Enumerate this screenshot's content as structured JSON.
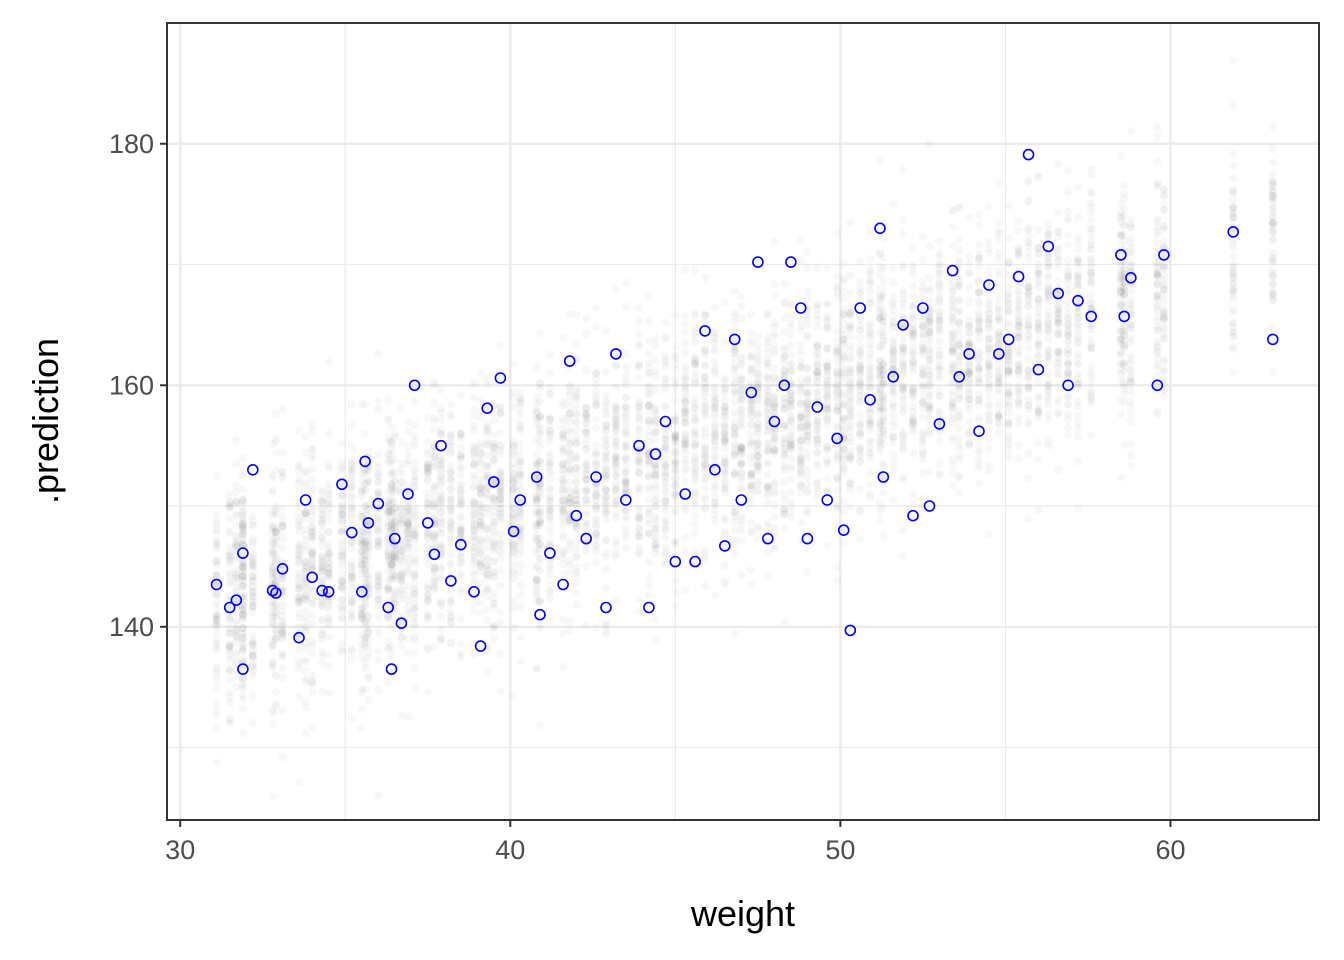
{
  "chart_data": {
    "type": "scatter",
    "xlabel": "weight",
    "ylabel": ".prediction",
    "xlim": [
      29.6,
      64.5
    ],
    "ylim": [
      124,
      190
    ],
    "x_ticks": [
      30,
      40,
      50,
      60
    ],
    "y_ticks": [
      140,
      160,
      180
    ],
    "x_tick_labels": [
      "30",
      "40",
      "50",
      "60"
    ],
    "y_tick_labels": [
      "140",
      "160",
      "180"
    ],
    "grid": true,
    "legend": "none",
    "colors": {
      "observed": "#0000ff",
      "draws": "#1a1a1a",
      "grid": "#ebebeb",
      "panel_border": "#333333"
    },
    "series": [
      {
        "name": "",
        "role": "posterior-prediction-draws",
        "description_values": "many translucent predicted heights per observed weight",
        "marker": "filled-circle",
        "color": "#1a1a1a",
        "opacity": 0.03,
        "mean_line": {
          "intercept": 114.0,
          "slope": 0.905
        },
        "sd": 5.1
      },
      {
        "name": "",
        "role": "observed",
        "marker": "open-circle",
        "color": "#0000ff",
        "x": [
          31.1,
          31.5,
          31.7,
          31.9,
          31.9,
          32.2,
          32.8,
          32.9,
          33.1,
          33.6,
          33.8,
          34.0,
          34.3,
          34.5,
          34.9,
          35.2,
          35.5,
          35.6,
          35.7,
          36.0,
          36.3,
          36.4,
          36.5,
          36.7,
          36.9,
          37.1,
          37.5,
          37.7,
          37.9,
          38.2,
          38.5,
          38.9,
          39.1,
          39.3,
          39.5,
          39.7,
          40.1,
          40.3,
          40.8,
          40.9,
          41.2,
          41.6,
          41.8,
          42.0,
          42.3,
          42.6,
          42.9,
          43.2,
          43.5,
          43.9,
          44.2,
          44.4,
          44.7,
          45.0,
          45.3,
          45.6,
          45.9,
          46.2,
          46.5,
          46.8,
          47.0,
          47.3,
          47.5,
          47.8,
          48.0,
          48.3,
          48.5,
          48.8,
          49.0,
          49.3,
          49.6,
          49.9,
          50.1,
          50.3,
          50.6,
          50.9,
          51.2,
          51.3,
          51.6,
          51.9,
          52.2,
          52.5,
          52.7,
          53.0,
          53.4,
          53.6,
          53.9,
          54.2,
          54.5,
          54.8,
          55.1,
          55.4,
          55.7,
          56.0,
          56.3,
          56.6,
          56.9,
          57.2,
          57.6,
          58.5,
          58.6,
          58.8,
          59.6,
          59.8,
          61.9,
          63.1
        ],
        "y": [
          143.5,
          141.6,
          142.2,
          146.1,
          136.5,
          153.0,
          143.0,
          142.8,
          144.8,
          139.1,
          150.5,
          144.1,
          143.0,
          142.9,
          151.8,
          147.8,
          142.9,
          153.7,
          148.6,
          150.2,
          141.6,
          136.5,
          147.3,
          140.3,
          151.0,
          160.0,
          148.6,
          146.0,
          155.0,
          143.8,
          146.8,
          142.9,
          138.4,
          158.1,
          152.0,
          160.6,
          147.9,
          150.5,
          152.4,
          141.0,
          146.1,
          143.5,
          162.0,
          149.2,
          147.3,
          152.4,
          141.6,
          162.6,
          150.5,
          155.0,
          141.6,
          154.3,
          157.0,
          145.4,
          151.0,
          145.4,
          164.5,
          153.0,
          146.7,
          163.8,
          150.5,
          159.4,
          170.2,
          147.3,
          157.0,
          160.0,
          170.2,
          166.4,
          147.3,
          158.2,
          150.5,
          155.6,
          148.0,
          139.7,
          166.4,
          158.8,
          173.0,
          152.4,
          160.7,
          165.0,
          149.2,
          166.4,
          150.0,
          156.8,
          169.5,
          160.7,
          162.6,
          156.2,
          168.3,
          162.6,
          163.8,
          169.0,
          179.1,
          161.3,
          171.5,
          167.6,
          160.0,
          167.0,
          165.7,
          170.8,
          165.7,
          168.9,
          160.0,
          170.8,
          172.7,
          163.8
        ]
      }
    ]
  }
}
